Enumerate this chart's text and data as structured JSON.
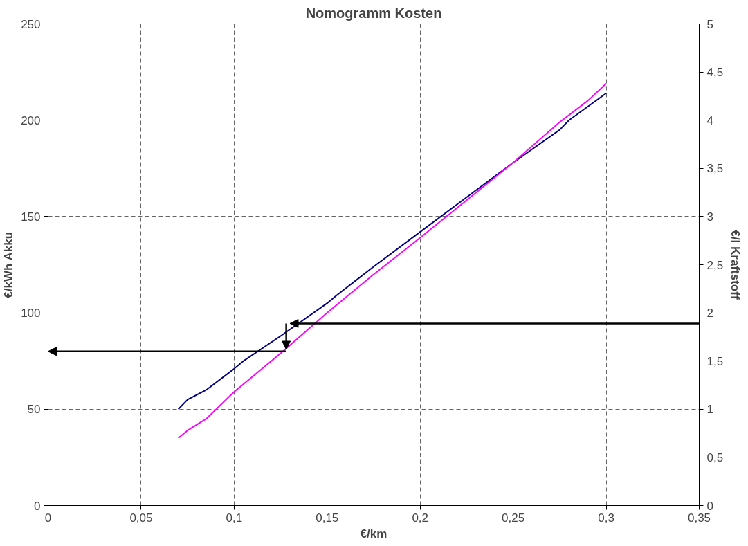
{
  "chart_data": {
    "type": "line",
    "title": "Nomogramm Kosten",
    "xlabel": "€/km",
    "ylabel": "€/kWh Akku",
    "y2label": "€/l Kraftstoff",
    "series": [
      {
        "color": "#000080",
        "x": [
          0.07,
          0.075,
          0.085,
          0.1,
          0.105,
          0.125,
          0.15,
          0.155,
          0.175,
          0.2,
          0.225,
          0.25,
          0.275,
          0.28,
          0.3
        ],
        "values": [
          50,
          55,
          60,
          71,
          75,
          88,
          105,
          109,
          124,
          142,
          160,
          178,
          195,
          200,
          214
        ]
      },
      {
        "color": "#ff00ff",
        "axis": "y2",
        "x": [
          0.07,
          0.075,
          0.085,
          0.1,
          0.125,
          0.15,
          0.175,
          0.2,
          0.225,
          0.25,
          0.275,
          0.29,
          0.3
        ],
        "values": [
          0.7,
          0.78,
          0.9,
          1.18,
          1.58,
          2.0,
          2.4,
          2.78,
          3.17,
          3.56,
          3.98,
          4.2,
          4.38
        ]
      }
    ],
    "xlim": [
      0,
      0.35
    ],
    "xticks": [
      0,
      {
        "value": 0.05,
        "label": "0,05"
      },
      {
        "value": 0.1,
        "label": "0,1"
      },
      {
        "value": 0.15,
        "label": "0,15"
      },
      {
        "value": 0.2,
        "label": "0,2"
      },
      {
        "value": 0.25,
        "label": "0,25"
      },
      {
        "value": 0.3,
        "label": "0,3"
      },
      {
        "value": 0.35,
        "label": "0,35"
      }
    ],
    "ylim": [
      0,
      250
    ],
    "yticks": [
      0,
      50,
      100,
      150,
      200,
      250
    ],
    "y2lim": [
      0,
      5
    ],
    "y2ticks": [
      0,
      {
        "value": 0.5,
        "label": "0,5"
      },
      1,
      {
        "value": 1.5,
        "label": "1,5"
      },
      2,
      {
        "value": 2.5,
        "label": "2,5"
      },
      3,
      {
        "value": 3.5,
        "label": "3,5"
      },
      4,
      {
        "value": 4.5,
        "label": "4,5"
      },
      5
    ],
    "grid": true,
    "line_style": "solid",
    "marker": "none"
  }
}
